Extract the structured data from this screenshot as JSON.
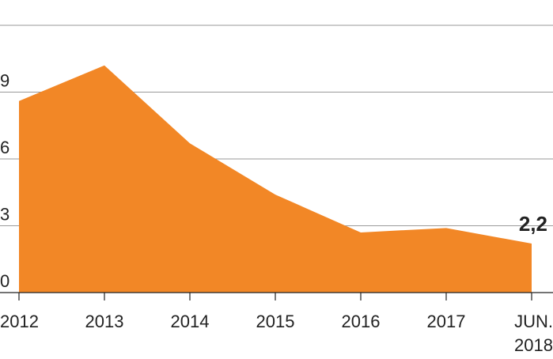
{
  "chart_data": {
    "type": "area",
    "title": "",
    "xlabel": "",
    "ylabel": "",
    "categories": [
      "2012",
      "2013",
      "2014",
      "2015",
      "2016",
      "2017",
      "JUN. 2018"
    ],
    "x_tick_labels": [
      [
        "2012"
      ],
      [
        "2013"
      ],
      [
        "2014"
      ],
      [
        "2015"
      ],
      [
        "2016"
      ],
      [
        "2017"
      ],
      [
        "JUN.",
        "2018"
      ]
    ],
    "series": [
      {
        "values": [
          8.6,
          10.2,
          6.7,
          4.4,
          2.7,
          2.9,
          2.2
        ]
      }
    ],
    "y_ticks": [
      0,
      3,
      6,
      9,
      12
    ],
    "y_tick_labels": [
      "0",
      "3",
      "6",
      "9",
      ""
    ],
    "ylim": [
      0,
      12
    ],
    "grid": true,
    "legend": "none",
    "annotation": {
      "text": "2,2",
      "category": "JUN. 2018"
    },
    "colors": {
      "area": "#F28726",
      "grid": "#9a9a9a",
      "text": "#222222"
    }
  }
}
